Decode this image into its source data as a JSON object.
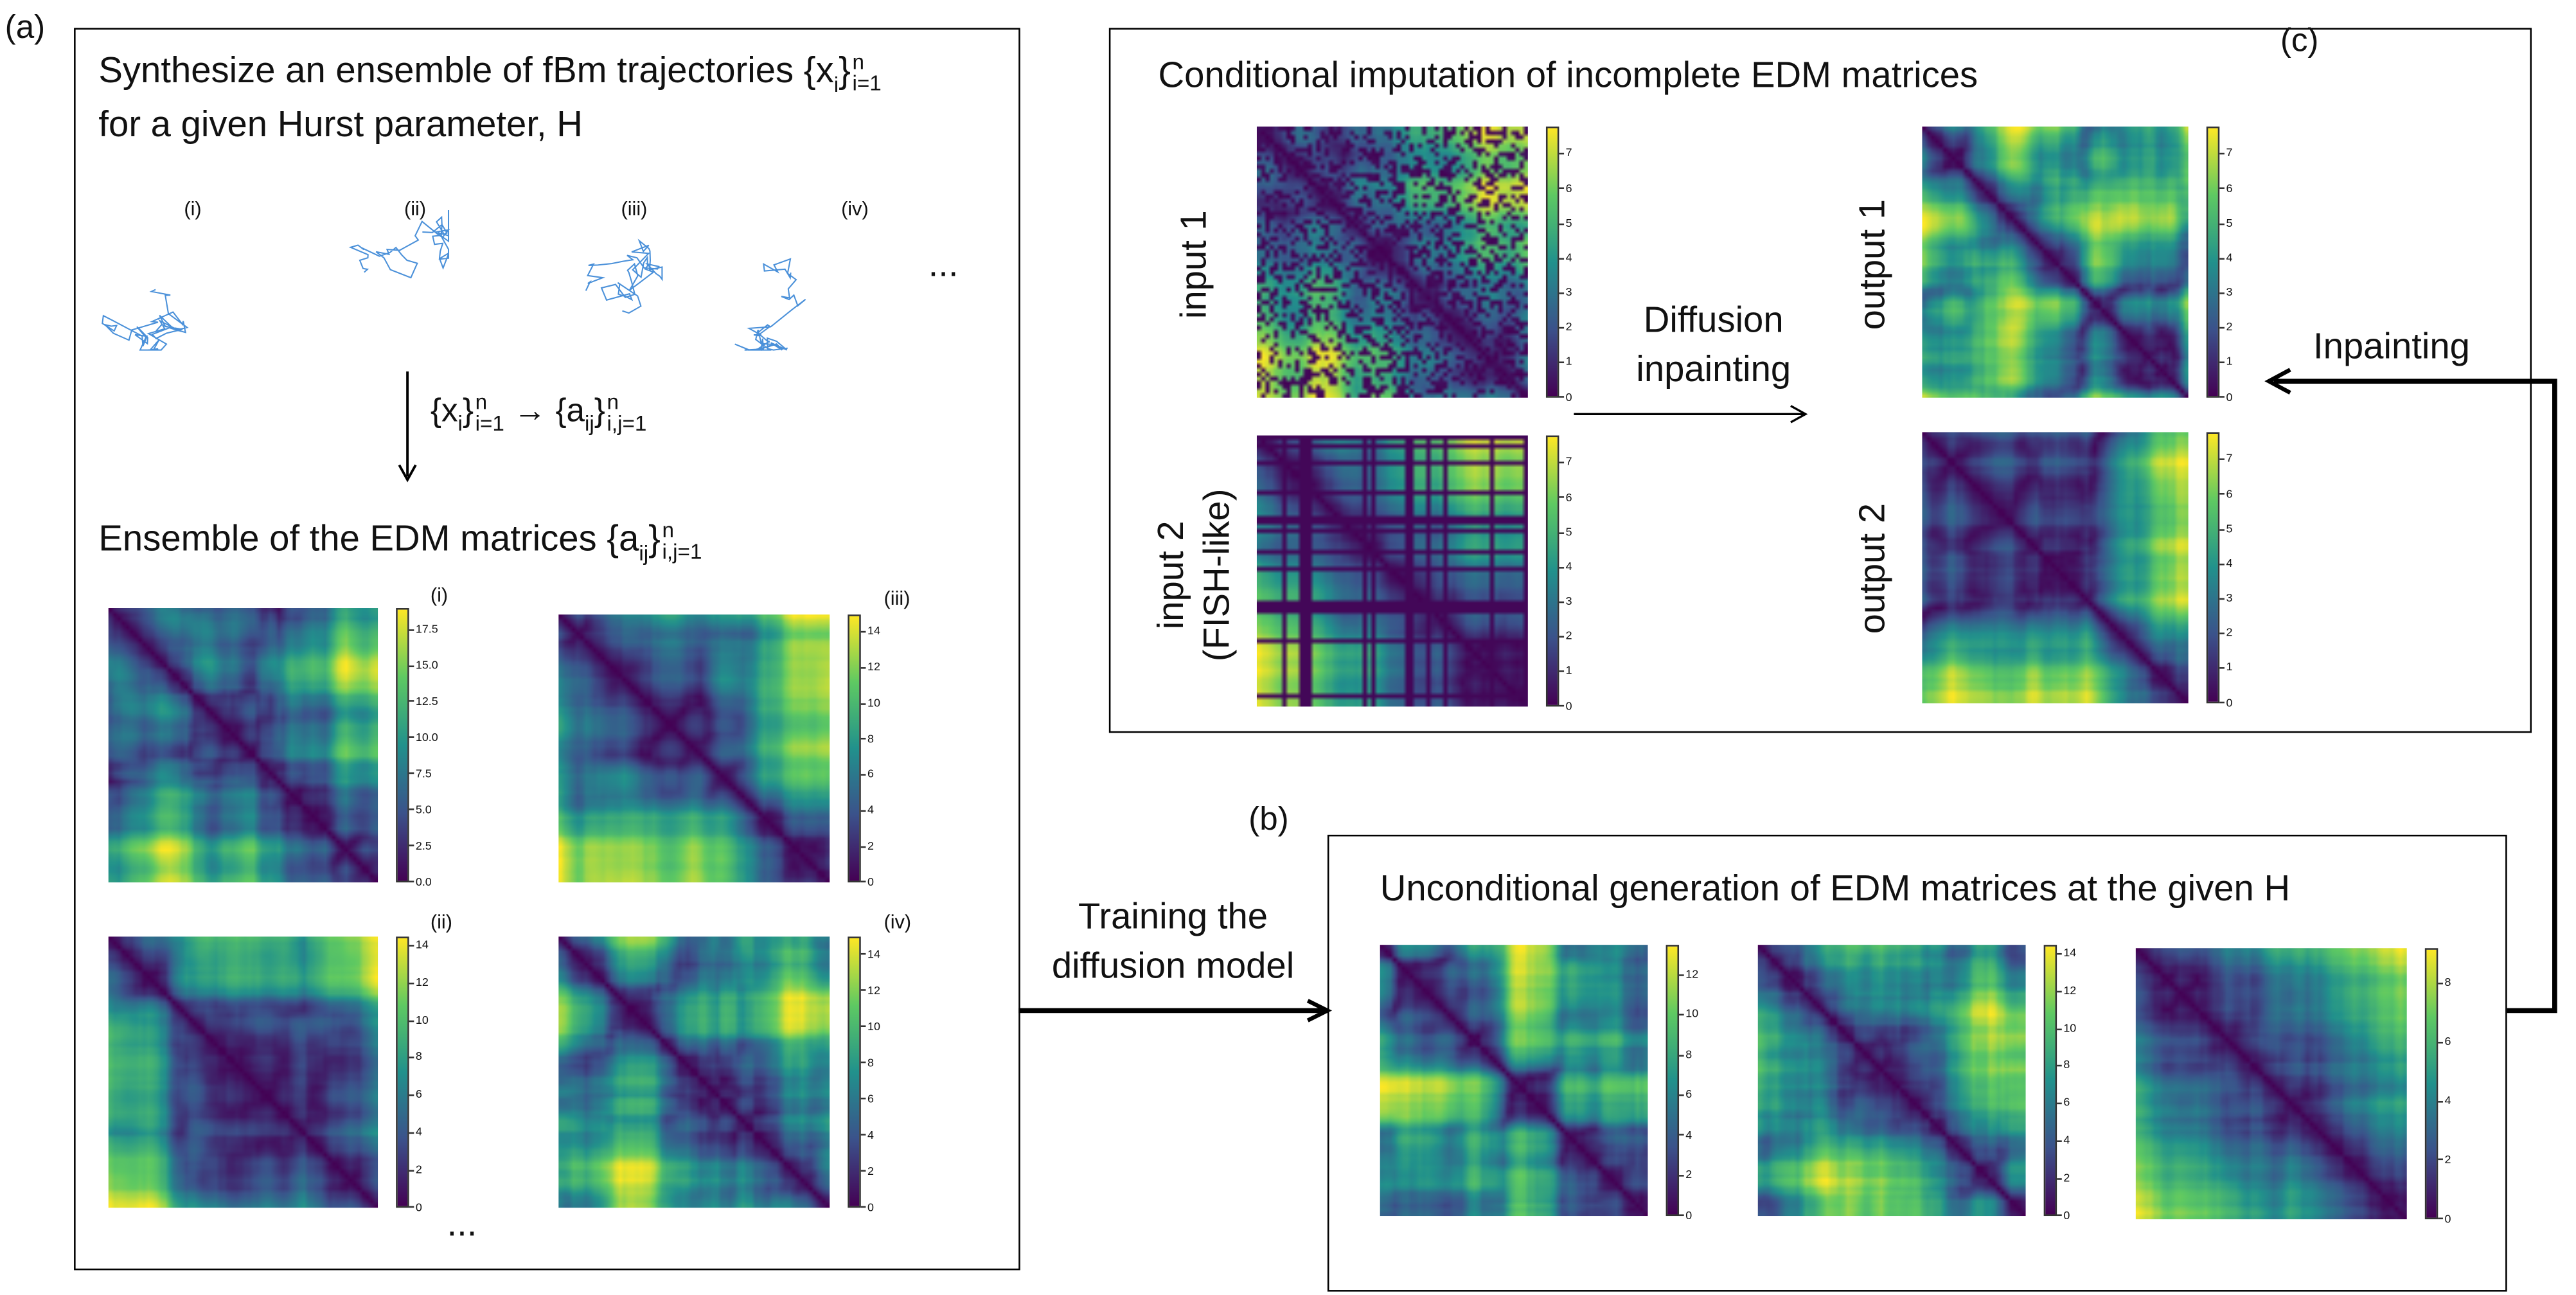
{
  "panel_a": {
    "label": "(a)",
    "title_line1": "Synthesize an ensemble of fBm trajectories {x",
    "title_line1_sub": "i",
    "title_line1_sup": "n",
    "title_line1_sub2": "i=1",
    "title_line2": "for a given Hurst parameter, H",
    "trajectory_labels": [
      "(i)",
      "(ii)",
      "(iii)",
      "(iv)"
    ],
    "trajectory_ellipsis": "...",
    "trajectory_color": "#4a90d9",
    "mapping_text": {
      "lhs": "{x",
      "lhs_sub": "i",
      "lhs_sup": "n",
      "lhs_sub2": "i=1",
      "arrow": "→",
      "rhs": "{a",
      "rhs_sub": "ij",
      "rhs_sup": "n",
      "rhs_sub2": "i,j=1"
    },
    "edm_title": "Ensemble of the EDM matrices {a",
    "edm_title_sub": "ij",
    "edm_title_sup": "n",
    "edm_title_sub2": "i,j=1",
    "matrices": [
      {
        "label": "(i)",
        "ticks": [
          "0.0",
          "2.5",
          "5.0",
          "7.5",
          "10.0",
          "12.5",
          "15.0",
          "17.5"
        ],
        "max": 19
      },
      {
        "label": "(iii)",
        "ticks": [
          "0",
          "2",
          "4",
          "6",
          "8",
          "10",
          "12",
          "14"
        ],
        "max": 15
      },
      {
        "label": "(ii)",
        "ticks": [
          "0",
          "2",
          "4",
          "6",
          "8",
          "10",
          "12",
          "14"
        ],
        "max": 14.5
      },
      {
        "label": "(iv)",
        "ticks": [
          "0",
          "2",
          "4",
          "6",
          "8",
          "10",
          "12",
          "14"
        ],
        "max": 15
      }
    ],
    "matrices_ellipsis": "..."
  },
  "training_label_line1": "Training the",
  "training_label_line2": "diffusion model",
  "panel_b": {
    "label": "(b)",
    "title": "Unconditional generation of EDM matrices at the given H",
    "matrices": [
      {
        "ticks": [
          "0",
          "2",
          "4",
          "6",
          "8",
          "10",
          "12"
        ],
        "max": 13.5
      },
      {
        "ticks": [
          "0",
          "2",
          "4",
          "6",
          "8",
          "10",
          "12",
          "14"
        ],
        "max": 14.5
      },
      {
        "ticks": [
          "0",
          "2",
          "4",
          "6",
          "8"
        ],
        "max": 9.2
      }
    ]
  },
  "panel_c": {
    "label": "(c)",
    "title": "Conditional imputation of incomplete EDM matrices",
    "input1_label": "input 1",
    "input2_label_line1": "input 2",
    "input2_label_line2": "(FISH-like)",
    "arrow_label_line1": "Diffusion",
    "arrow_label_line2": "inpainting",
    "output1_label": "output 1",
    "output2_label": "output 2",
    "colorbar_ticks": [
      "0",
      "1",
      "2",
      "3",
      "4",
      "5",
      "6",
      "7"
    ],
    "max": 7.8
  },
  "inpainting_label": "Inpainting",
  "colormap": [
    "#440154",
    "#3b528b",
    "#21918c",
    "#5ec962",
    "#fde725"
  ]
}
